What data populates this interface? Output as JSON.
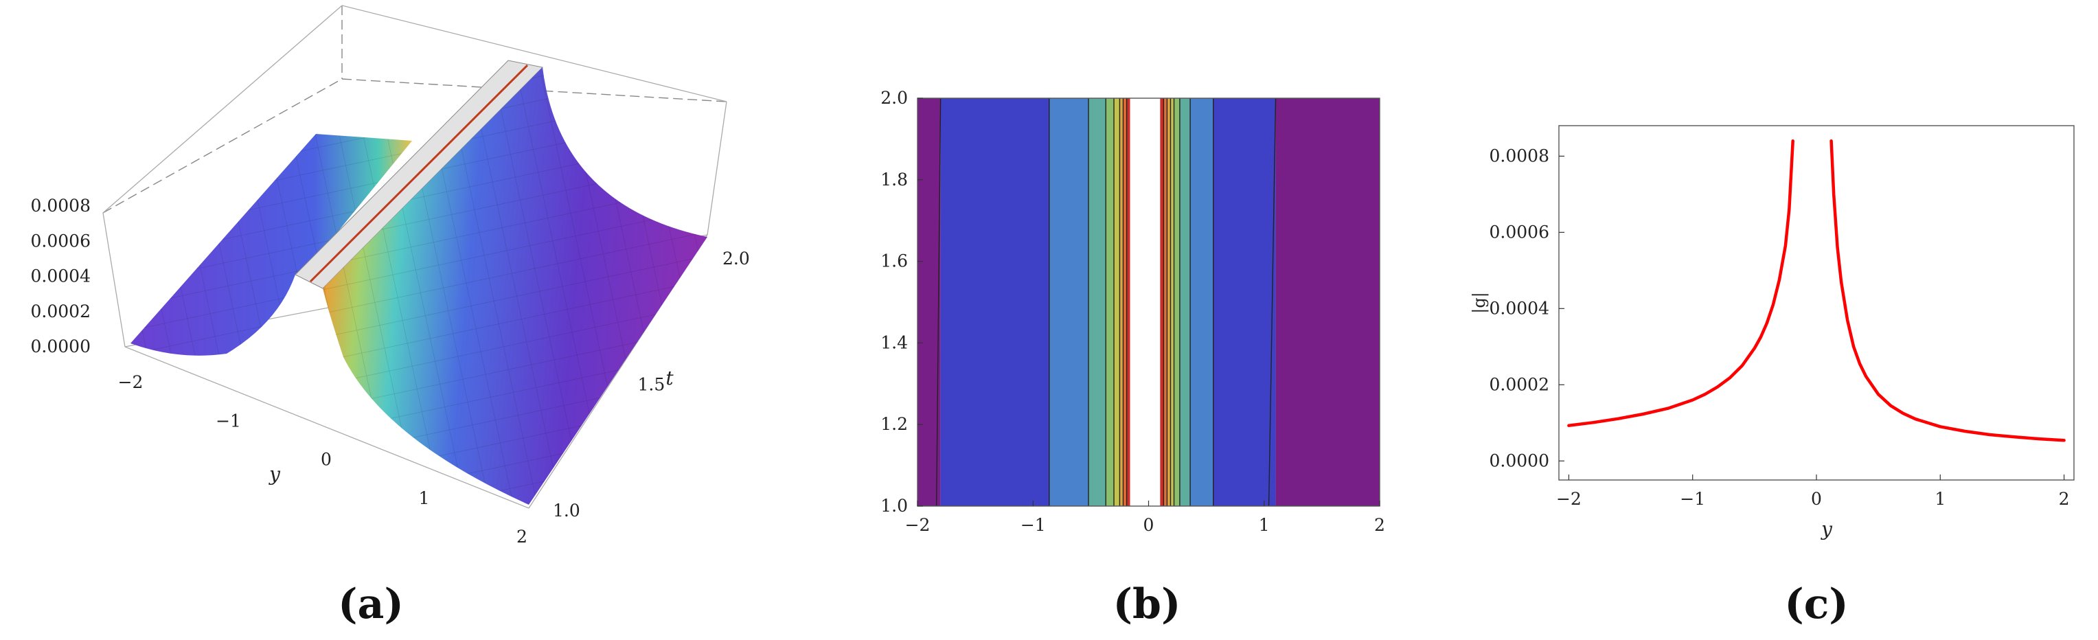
{
  "panels": [
    {
      "label": "(a)"
    },
    {
      "label": "(b)"
    },
    {
      "label": "(c)"
    }
  ],
  "chart_data": [
    {
      "type": "surface3d",
      "xlabel": "y",
      "ylabel": "t",
      "zlabel": "",
      "xlim": [
        -2,
        2
      ],
      "ylim": [
        1.0,
        2.0
      ],
      "zlim": [
        0,
        0.0008
      ],
      "x_ticks": [
        "−2",
        "−1",
        "0",
        "1",
        "2"
      ],
      "y_ticks": [
        "1.0",
        "1.5",
        "2.0"
      ],
      "z_ticks": [
        "0.0000",
        "0.0002",
        "0.0004",
        "0.0006",
        "0.0008"
      ],
      "colormap": "rainbow (purple → blue → green → yellow → red)",
      "grid": true,
      "surface_profile": {
        "y": [
          -2.0,
          -1.5,
          -1.0,
          -0.5,
          -0.25,
          -0.12,
          0.12,
          0.25,
          0.5,
          1.0,
          1.5,
          2.0
        ],
        "value": [
          9e-05,
          0.00011,
          0.00015,
          0.00028,
          0.0005,
          0.00082,
          0.00082,
          0.00045,
          0.00022,
          0.0001,
          7e-05,
          5e-05
        ]
      }
    },
    {
      "type": "contour",
      "xlabel": "",
      "ylabel": "",
      "xlim": [
        -2,
        2
      ],
      "ylim": [
        1.0,
        2.0
      ],
      "x_ticks": [
        "−2",
        "−1",
        "0",
        "1",
        "2"
      ],
      "y_ticks": [
        "1.0",
        "1.2",
        "1.4",
        "1.6",
        "1.8",
        "2.0"
      ],
      "colormap": "rainbow",
      "bands": [
        {
          "from": -2.0,
          "to": -1.8,
          "color": "#771f86"
        },
        {
          "from": -1.8,
          "to": -0.86,
          "color": "#3e41c6"
        },
        {
          "from": -0.86,
          "to": -0.52,
          "color": "#4a82cb"
        },
        {
          "from": -0.52,
          "to": -0.37,
          "color": "#5fad9e"
        },
        {
          "from": -0.37,
          "to": -0.3,
          "color": "#8cbf6c"
        },
        {
          "from": -0.3,
          "to": -0.25,
          "color": "#c2c24c"
        },
        {
          "from": -0.25,
          "to": -0.22,
          "color": "#dca640"
        },
        {
          "from": -0.22,
          "to": -0.19,
          "color": "#e06e35"
        },
        {
          "from": -0.19,
          "to": -0.16,
          "color": "#cc2e2a"
        },
        {
          "from": -0.16,
          "to": 0.1,
          "color": "#ffffff"
        },
        {
          "from": 0.1,
          "to": 0.13,
          "color": "#cc2e2a"
        },
        {
          "from": 0.13,
          "to": 0.16,
          "color": "#e06e35"
        },
        {
          "from": 0.16,
          "to": 0.19,
          "color": "#dca640"
        },
        {
          "from": 0.19,
          "to": 0.22,
          "color": "#c2c24c"
        },
        {
          "from": 0.22,
          "to": 0.27,
          "color": "#8cbf6c"
        },
        {
          "from": 0.27,
          "to": 0.36,
          "color": "#5fad9e"
        },
        {
          "from": 0.36,
          "to": 0.56,
          "color": "#4a82cb"
        },
        {
          "from": 0.56,
          "to": 1.1,
          "color": "#3e41c6"
        },
        {
          "from": 1.1,
          "to": 2.0,
          "color": "#771f86"
        }
      ]
    },
    {
      "type": "line",
      "xlabel": "y",
      "ylabel": "|g|",
      "xlim": [
        -2.08,
        2.08
      ],
      "ylim": [
        -5e-05,
        0.00088
      ],
      "x_ticks": [
        "−2",
        "−1",
        "0",
        "1",
        "2"
      ],
      "x_tick_values": [
        -2,
        -1,
        0,
        1,
        2
      ],
      "y_ticks": [
        "0.0000",
        "0.0002",
        "0.0004",
        "0.0006",
        "0.0008"
      ],
      "y_tick_values": [
        0,
        0.0002,
        0.0004,
        0.0006,
        0.0008
      ],
      "series": [
        {
          "color": "#ff0000",
          "segments": [
            {
              "x": [
                -2.0,
                -1.8,
                -1.6,
                -1.4,
                -1.2,
                -1.0,
                -0.9,
                -0.8,
                -0.7,
                -0.6,
                -0.5,
                -0.45,
                -0.4,
                -0.35,
                -0.3,
                -0.25,
                -0.22,
                -0.19
              ],
              "y": [
                9.3e-05,
                0.000101,
                0.000111,
                0.000123,
                0.000138,
                0.00016,
                0.000175,
                0.000194,
                0.000218,
                0.00025,
                0.000296,
                0.000325,
                0.000362,
                0.00041,
                0.000475,
                0.000565,
                0.00066,
                0.00084
              ]
            },
            {
              "x": [
                0.12,
                0.14,
                0.17,
                0.2,
                0.25,
                0.3,
                0.35,
                0.4,
                0.5,
                0.6,
                0.7,
                0.8,
                1.0,
                1.2,
                1.4,
                1.6,
                1.8,
                2.0
              ],
              "y": [
                0.00084,
                0.0007,
                0.00056,
                0.00047,
                0.00037,
                0.0003,
                0.000255,
                0.000222,
                0.000175,
                0.000145,
                0.000125,
                0.00011,
                9e-05,
                7.8e-05,
                6.9e-05,
                6.3e-05,
                5.8e-05,
                5.4e-05
              ]
            }
          ]
        }
      ]
    }
  ]
}
